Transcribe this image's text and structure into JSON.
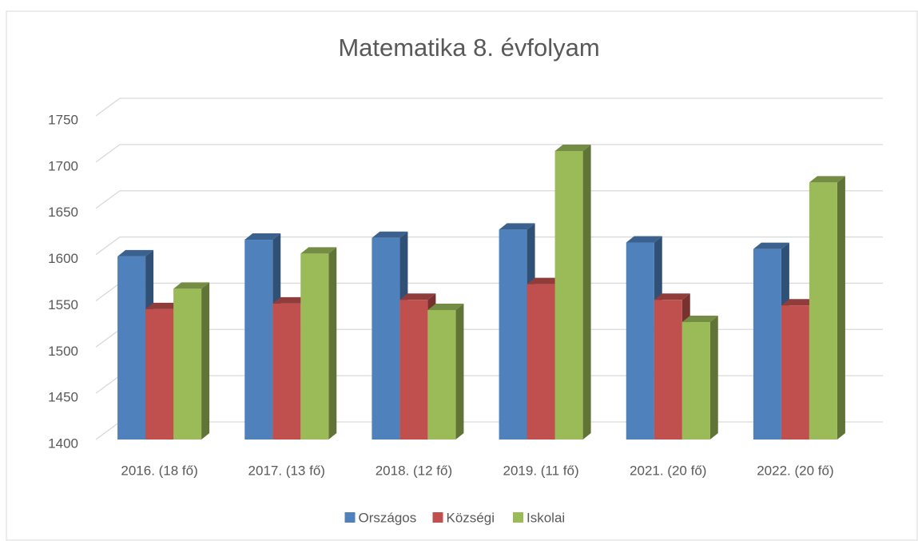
{
  "chart_data": {
    "type": "bar3d",
    "title": "Matematika 8. évfolyam",
    "categories": [
      "2016. (18 fő)",
      "2017. (13 fő)",
      "2018. (12 fő)",
      "2019. (11 fő)",
      "2021. (20 fő)",
      "2022. (20 fő)"
    ],
    "series": [
      {
        "name": "Országos",
        "color": "#4f81bd",
        "values": [
          1598,
          1616,
          1618,
          1627,
          1613,
          1606
        ]
      },
      {
        "name": "Községi",
        "color": "#c0504d",
        "values": [
          1541,
          1547,
          1551,
          1568,
          1551,
          1545
        ]
      },
      {
        "name": "Iskolai",
        "color": "#9bbb59",
        "values": [
          1563,
          1601,
          1540,
          1712,
          1527,
          1678
        ]
      }
    ],
    "ylim": [
      1400,
      1750
    ],
    "yticks": [
      1400,
      1450,
      1500,
      1550,
      1600,
      1650,
      1700,
      1750
    ],
    "grid": true,
    "legend": "bottom"
  }
}
